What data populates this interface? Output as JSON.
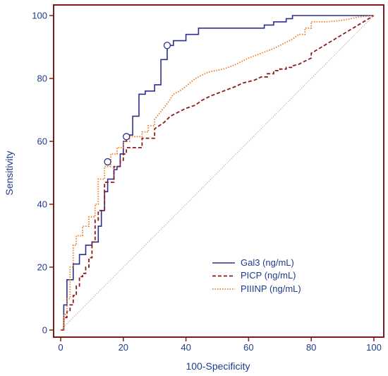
{
  "chart_data": {
    "type": "line",
    "title": "",
    "xlabel": "100-Specificity",
    "ylabel": "Sensitivity",
    "xlim": [
      0,
      100
    ],
    "ylim": [
      0,
      100
    ],
    "xticks": [
      0,
      20,
      40,
      60,
      80,
      100
    ],
    "yticks": [
      0,
      20,
      40,
      60,
      80,
      100
    ],
    "grid": false,
    "legend_position": "bottom-right",
    "colors": {
      "frame": "#7a1a1a",
      "diagonal": "#d98c8c",
      "text": "#1f3b8c"
    },
    "series": [
      {
        "name": "Gal3 (ng/mL)",
        "color": "#2b2f8f",
        "style": "solid",
        "x": [
          0,
          1,
          1,
          2,
          2,
          4,
          4,
          6,
          6,
          8,
          8,
          10,
          10,
          12,
          12,
          13,
          13,
          14,
          14,
          15,
          15,
          17,
          17,
          18,
          18,
          19,
          19,
          20,
          20,
          21,
          21,
          23,
          23,
          25,
          25,
          27,
          27,
          30,
          30,
          32,
          32,
          34,
          34,
          36,
          36,
          40,
          40,
          44,
          44,
          60,
          60,
          65,
          65,
          68,
          68,
          72,
          72,
          74,
          74,
          100
        ],
        "y": [
          0,
          0,
          8,
          8,
          16,
          16,
          21,
          21,
          24,
          24,
          27,
          27,
          28,
          28,
          33,
          33,
          38,
          38,
          44,
          44,
          48,
          48,
          51,
          51,
          52,
          52,
          56,
          56,
          60,
          60,
          62,
          62,
          68,
          68,
          75,
          75,
          76,
          76,
          78,
          78,
          86,
          86,
          90.5,
          90.5,
          92,
          92,
          94,
          94,
          96,
          96,
          96,
          96,
          97,
          97,
          98,
          98,
          99,
          99,
          100,
          100
        ]
      },
      {
        "name": "PICP (ng/mL)",
        "color": "#8c1a1a",
        "style": "dashed",
        "x": [
          0,
          1,
          1,
          2,
          2,
          3,
          3,
          4,
          4,
          5,
          5,
          6,
          6,
          7,
          7,
          8,
          8,
          9,
          9,
          10,
          10,
          11,
          11,
          12,
          12,
          14,
          14,
          17,
          17,
          19,
          19,
          20,
          20,
          21,
          21,
          26,
          26,
          30,
          30,
          33,
          35,
          38,
          40,
          43,
          45,
          48,
          52,
          56,
          58,
          62,
          64,
          66,
          66,
          68,
          68,
          70,
          70,
          72,
          72,
          74,
          74,
          76,
          78,
          80,
          80,
          85,
          90,
          95,
          100
        ],
        "y": [
          0,
          0,
          4,
          4,
          6,
          6,
          8,
          8,
          11,
          11,
          14,
          14,
          17,
          17,
          18,
          18,
          20,
          20,
          23,
          23,
          28,
          28,
          35,
          35,
          38,
          38,
          47,
          47,
          52,
          52,
          54,
          54,
          56,
          56,
          58,
          58,
          61,
          61,
          64,
          66,
          68,
          69.5,
          70.5,
          71.5,
          73,
          74.5,
          76,
          77.5,
          78.5,
          79.5,
          80.5,
          80.5,
          81.5,
          81.5,
          82.5,
          82.5,
          83,
          83,
          83.5,
          83.5,
          84,
          84.5,
          85.5,
          86.5,
          88,
          91,
          94,
          97,
          100
        ]
      },
      {
        "name": "PIIINP (ng/mL)",
        "color": "#f07820",
        "style": "dotted",
        "x": [
          0,
          1,
          1,
          2,
          2,
          3,
          3,
          4,
          4,
          5,
          5,
          7,
          7,
          9,
          9,
          11,
          11,
          12,
          12,
          14,
          14,
          16,
          16,
          18,
          18,
          20,
          20,
          22,
          22,
          26,
          26,
          28,
          28,
          30,
          30,
          34,
          36,
          38,
          40,
          43,
          47,
          52,
          56,
          60,
          64,
          68,
          72,
          74,
          76,
          78,
          78,
          80,
          80,
          85,
          90,
          95,
          100
        ],
        "y": [
          0,
          0,
          5,
          5,
          10,
          10,
          20,
          20,
          27,
          27,
          30,
          30,
          33,
          33,
          36,
          36,
          40,
          40,
          48,
          48,
          52,
          52,
          56,
          56,
          58,
          58,
          60,
          60,
          61.5,
          61.5,
          63,
          63,
          65,
          65,
          67,
          72,
          75,
          76,
          77.5,
          80,
          82,
          83,
          84.5,
          86.5,
          88,
          89.5,
          91.5,
          92.5,
          94,
          94,
          96,
          96,
          98,
          98,
          98.5,
          99.5,
          100
        ]
      }
    ],
    "markers": [
      {
        "series": "Gal3 (ng/mL)",
        "x": 15,
        "y": 53.5
      },
      {
        "series": "Gal3 (ng/mL)",
        "x": 21,
        "y": 61.5
      },
      {
        "series": "Gal3 (ng/mL)",
        "x": 34,
        "y": 90.5
      }
    ],
    "reference_line": {
      "from": [
        0,
        0
      ],
      "to": [
        100,
        100
      ]
    }
  }
}
